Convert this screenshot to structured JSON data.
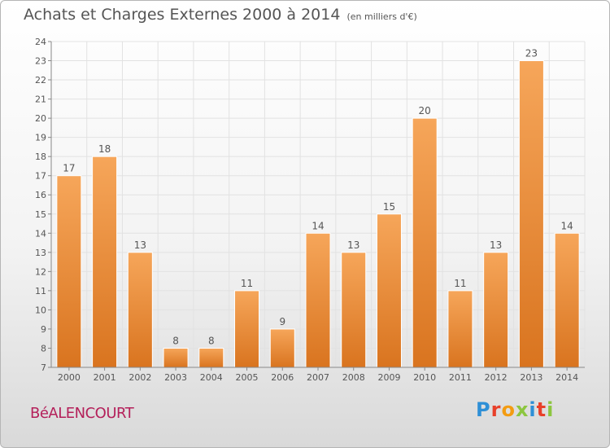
{
  "header": {
    "title": "Achats et Charges Externes 2000 à 2014",
    "unit": "(en milliers d'€)"
  },
  "footer": {
    "commune": "BéALENCOURT",
    "logo_text": "Proxiti",
    "logo_colors": [
      "#2e8fd6",
      "#e8402a",
      "#f39c12",
      "#8cc63f",
      "#2e8fd6",
      "#e8402a",
      "#8cc63f"
    ]
  },
  "colors": {
    "bar_light": "#f6a65a",
    "bar_dark": "#d9741f",
    "grid": "#e2e2e2",
    "axis": "#888888"
  },
  "chart_data": {
    "type": "bar",
    "title": "Achats et Charges Externes 2000 à 2014",
    "categories": [
      "2000",
      "2001",
      "2002",
      "2003",
      "2004",
      "2005",
      "2006",
      "2007",
      "2008",
      "2009",
      "2010",
      "2011",
      "2012",
      "2013",
      "2014"
    ],
    "values": [
      17,
      18,
      13,
      8,
      8,
      11,
      9,
      14,
      13,
      15,
      20,
      11,
      13,
      23,
      14
    ],
    "ylim": [
      7,
      24
    ],
    "yticks": [
      7,
      8,
      9,
      10,
      11,
      12,
      13,
      14,
      15,
      16,
      17,
      18,
      19,
      20,
      21,
      22,
      23,
      24
    ],
    "grid": true,
    "data_labels": true
  }
}
